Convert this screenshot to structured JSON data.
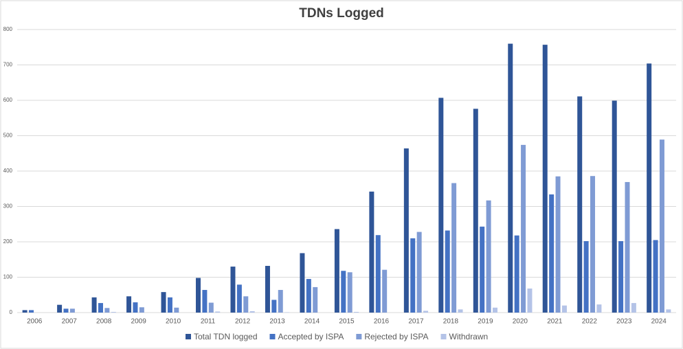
{
  "chart_data": {
    "type": "bar",
    "title": "TDNs Logged",
    "categories": [
      "2006",
      "2007",
      "2008",
      "2009",
      "2010",
      "2011",
      "2012",
      "2013",
      "2014",
      "2015",
      "2016",
      "2017",
      "2018",
      "2019",
      "2020",
      "2021",
      "2022",
      "2023",
      "2024"
    ],
    "series": [
      {
        "name": "Total TDN logged",
        "color": "#2f5597",
        "values": [
          7,
          22,
          43,
          46,
          58,
          98,
          130,
          132,
          168,
          236,
          342,
          464,
          607,
          576,
          760,
          757,
          611,
          599,
          704
        ]
      },
      {
        "name": "Accepted by ISPA",
        "color": "#4472c4",
        "values": [
          7,
          11,
          27,
          29,
          43,
          64,
          79,
          36,
          95,
          118,
          219,
          210,
          232,
          243,
          218,
          334,
          202,
          202,
          205
        ]
      },
      {
        "name": "Rejected by ISPA",
        "color": "#7f9bd4",
        "values": [
          0,
          11,
          13,
          15,
          14,
          28,
          46,
          64,
          72,
          114,
          121,
          228,
          366,
          317,
          474,
          385,
          386,
          369,
          489
        ]
      },
      {
        "name": "Withdrawn",
        "color": "#b4c3e7",
        "values": [
          0,
          0,
          2,
          0,
          0,
          3,
          4,
          1,
          0,
          2,
          0,
          5,
          9,
          14,
          68,
          20,
          23,
          27,
          9
        ]
      }
    ],
    "ylim": [
      0,
      800
    ],
    "yticks": [
      0,
      100,
      200,
      300,
      400,
      500,
      600,
      700,
      800
    ],
    "grid": true,
    "legend": "bottom"
  }
}
